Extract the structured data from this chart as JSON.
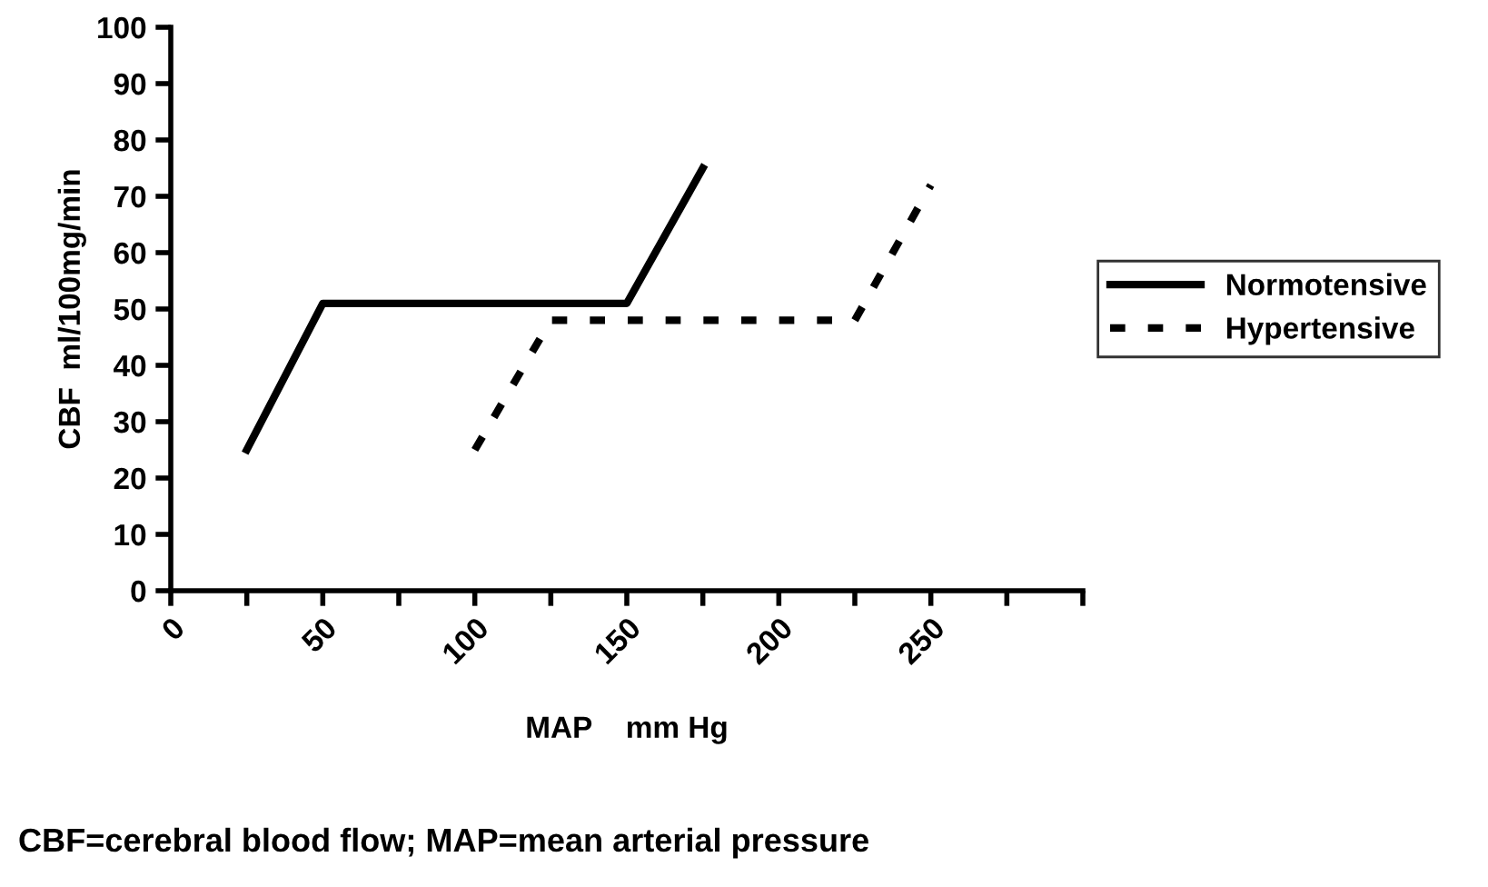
{
  "chart_data": {
    "type": "line",
    "xlabel": "MAP    mm Hg",
    "ylabel": "CBF  ml/100mg/min",
    "series": [
      {
        "name": "Normotensive",
        "color": "#000000",
        "line_style": "solid",
        "x": [
          25,
          50,
          150,
          175
        ],
        "values": [
          25,
          51,
          51,
          75
        ]
      },
      {
        "name": "Hypertensive",
        "color": "#000000",
        "line_style": "dashed",
        "x": [
          100,
          125,
          225,
          250
        ],
        "values": [
          25,
          48,
          48,
          72
        ]
      }
    ],
    "xlim": [
      0,
      300
    ],
    "xticks": [
      0,
      {
        "value": 25,
        "label": null
      },
      50,
      {
        "value": 75,
        "label": null
      },
      100,
      {
        "value": 125,
        "label": null
      },
      150,
      {
        "value": 175,
        "label": null
      },
      200,
      {
        "value": 225,
        "label": null
      },
      250,
      {
        "value": 275,
        "label": null
      },
      {
        "value": 300,
        "label": null
      }
    ],
    "ylim": [
      0,
      100
    ],
    "yticks": [
      0,
      10,
      20,
      30,
      40,
      50,
      60,
      70,
      80,
      90,
      100
    ],
    "grid": false,
    "legend": "right",
    "annotations": [
      "CBF=cerebral blood flow; MAP=mean arterial pressure"
    ]
  }
}
